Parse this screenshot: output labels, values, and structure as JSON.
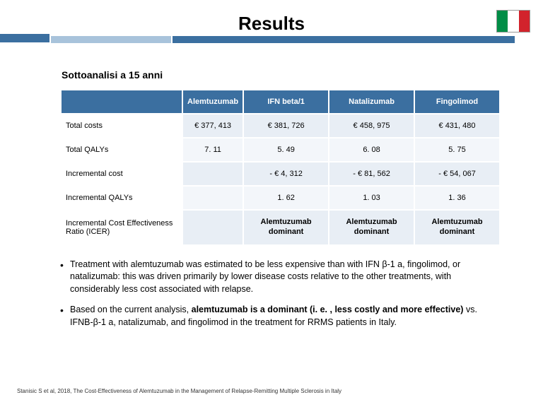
{
  "page_title": "Results",
  "subanalysis_title": "Sottoanalisi a 15 anni",
  "table": {
    "header_bg": "#3b6fa0",
    "header_color": "#ffffff",
    "row_alt_bg": "#e8eef5",
    "columns": [
      "Alemtuzumab",
      "IFN beta/1",
      "Natalizumab",
      "Fingolimod"
    ],
    "rows": [
      {
        "label": "Total costs",
        "values": [
          "€ 377, 413",
          "€ 381, 726",
          "€ 458, 975",
          "€ 431, 480"
        ]
      },
      {
        "label": "Total QALYs",
        "values": [
          "7. 11",
          "5. 49",
          "6. 08",
          "5. 75"
        ]
      },
      {
        "label": "Incremental cost",
        "values": [
          "",
          "- € 4, 312",
          "- € 81, 562",
          "- € 54, 067"
        ]
      },
      {
        "label": "Incremental QALYs",
        "values": [
          "",
          "1. 62",
          "1. 03",
          "1. 36"
        ]
      },
      {
        "label": "Incremental Cost Effectiveness Ratio (ICER)",
        "values": [
          "",
          "Alemtuzumab dominant",
          "Alemtuzumab dominant",
          "Alemtuzumab dominant"
        ]
      }
    ]
  },
  "bullets": {
    "b1_pre": "Treatment with alemtuzumab was estimated to be less expensive than with IFN β-1 a, fingolimod, or natalizumab: this was driven primarily by lower disease costs relative to the other treatments, with considerably less cost associated with relapse.",
    "b2_pre": "Based on the current analysis, ",
    "b2_bold": "alemtuzumab is a dominant (i. e. , less costly and more effective)",
    "b2_post": " vs. IFNB-β-1 a, natalizumab, and fingolimod in the treatment for RRMS patients in Italy."
  },
  "citation": "Stanisic S et al, 2018, The Cost-Effectiveness of Alemtuzumab in the Management of Relapse-Remitting Multiple Sclerosis in Italy",
  "flag_colors": {
    "green": "#008d46",
    "white": "#ffffff",
    "red": "#d2232c"
  }
}
